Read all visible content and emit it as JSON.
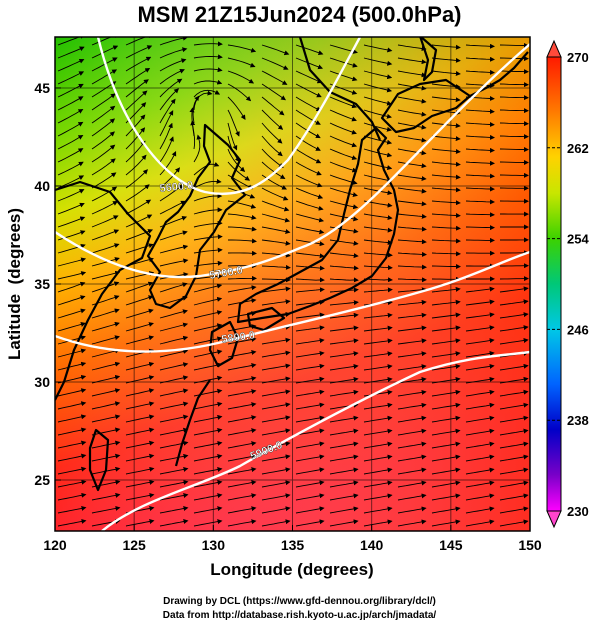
{
  "title": "MSM 21Z15Jun2024 (500.0hPa)",
  "chart_data": {
    "type": "heatmap",
    "title": "MSM 21Z15Jun2024 (500.0hPa)",
    "xlabel": "Longitude (degrees)",
    "ylabel": "Latitude  (degrees)",
    "xlim": [
      120,
      150
    ],
    "ylim": [
      22.4,
      47.6
    ],
    "x_ticks": [
      "120",
      "125",
      "130",
      "135",
      "140",
      "145",
      "150"
    ],
    "y_ticks": [
      "25",
      "30",
      "35",
      "40",
      "45"
    ],
    "grid": true,
    "colorbar": {
      "min": 230,
      "max": 270,
      "ticks": [
        "270",
        "262",
        "254",
        "246",
        "238",
        "230"
      ],
      "placement": "right"
    },
    "contour_labels": [
      "5600.0",
      "5700.0",
      "5800.0",
      "5900.0"
    ],
    "colors": {
      "high": "#ff2a1a",
      "mid": "#ffc400",
      "low": "#00c400",
      "contour": "#ffffff",
      "coast": "#000000"
    }
  },
  "footer": {
    "line1": "Drawing by DCL (https://www.gfd-dennou.org/library/dcl/)",
    "line2": "Data from http://database.rish.kyoto-u.ac.jp/arch/jmadata/"
  }
}
